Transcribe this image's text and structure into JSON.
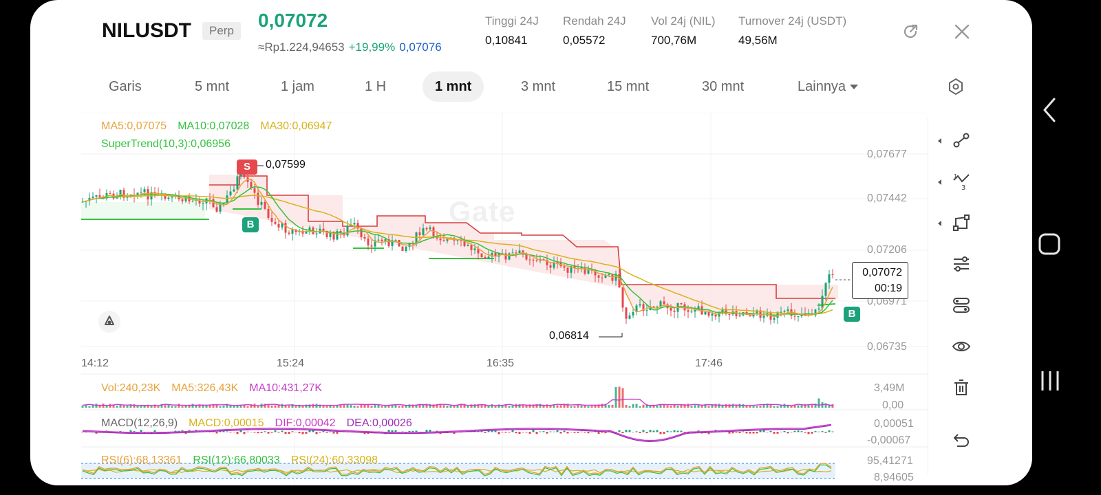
{
  "header": {
    "symbol": "NILUSDT",
    "badge": "Perp",
    "price": "0,07072",
    "price_idr": "≈Rp1.224,94653",
    "change": "+19,99%",
    "mark_price": "0,07076",
    "stats": [
      {
        "label": "Tinggi 24J",
        "value": "0,10841"
      },
      {
        "label": "Rendah 24J",
        "value": "0,05572"
      },
      {
        "label": "Vol 24j (NIL)",
        "value": "700,76M"
      },
      {
        "label": "Turnover 24j (USDT)",
        "value": "49,56M"
      }
    ],
    "icons": [
      "share-icon",
      "close-icon"
    ]
  },
  "tabs": [
    {
      "label": "Garis"
    },
    {
      "label": "5 mnt"
    },
    {
      "label": "1 jam"
    },
    {
      "label": "1 H"
    },
    {
      "label": "1 mnt",
      "active": true
    },
    {
      "label": "3 mnt"
    },
    {
      "label": "15 mnt"
    },
    {
      "label": "30 mnt"
    },
    {
      "label": "Lainnya"
    }
  ],
  "settings_icon": "gear-icon",
  "indicators": {
    "ma5": "MA5:0,07075",
    "ma10": "MA10:0,07028",
    "ma30": "MA30:0,06947",
    "supertrend": "SuperTrend(10,3):0,06956",
    "high_marker": "0,07599",
    "low_marker": "0,06814",
    "sell_signal": "S",
    "buy_signal_1": "B",
    "buy_signal_2": "B",
    "watermark": "Gate"
  },
  "price_axis": [
    "0,07677",
    "0,07442",
    "0,07206",
    "0,06971",
    "0,06735"
  ],
  "time_axis": [
    "14:12",
    "15:24",
    "16:35",
    "17:46"
  ],
  "current_price_box": {
    "price": "0,07072",
    "countdown": "00:19"
  },
  "volume": {
    "vol": "Vol:240,23K",
    "ma5": "MA5:326,43K",
    "ma10": "MA10:431,27K",
    "axis_top": "3,49M",
    "axis_bottom": "0,00"
  },
  "macd": {
    "label": "MACD(12,26,9)",
    "macd": "MACD:0,00015",
    "dif": "DIF:0,00042",
    "dea": "DEA:0,00026",
    "axis_top": "0,00051",
    "axis_bottom": "-0,00067"
  },
  "rsi": {
    "rsi6": "RSI(6):68,13361",
    "rsi12": "RSI(12):66,80033",
    "rsi24": "RSI(24):60,33098",
    "axis_top": "95,41271",
    "axis_bottom": "8,94605"
  },
  "colors": {
    "up": "#1ba27a",
    "down": "#e5484d",
    "ma5": "#e8a23b",
    "ma10": "#34c23f",
    "ma30": "#d9b21a",
    "magenta": "#c93bc9",
    "mark": "#1b5fc5"
  },
  "toolbar_icons": [
    "trendline-icon",
    "fibonacci-icon",
    "shape-icon",
    "indicator-sliders-icon",
    "layers-icon",
    "eye-icon",
    "trash-icon",
    "undo-icon"
  ],
  "nav_icons": [
    "back-icon",
    "home-icon",
    "recents-icon"
  ]
}
